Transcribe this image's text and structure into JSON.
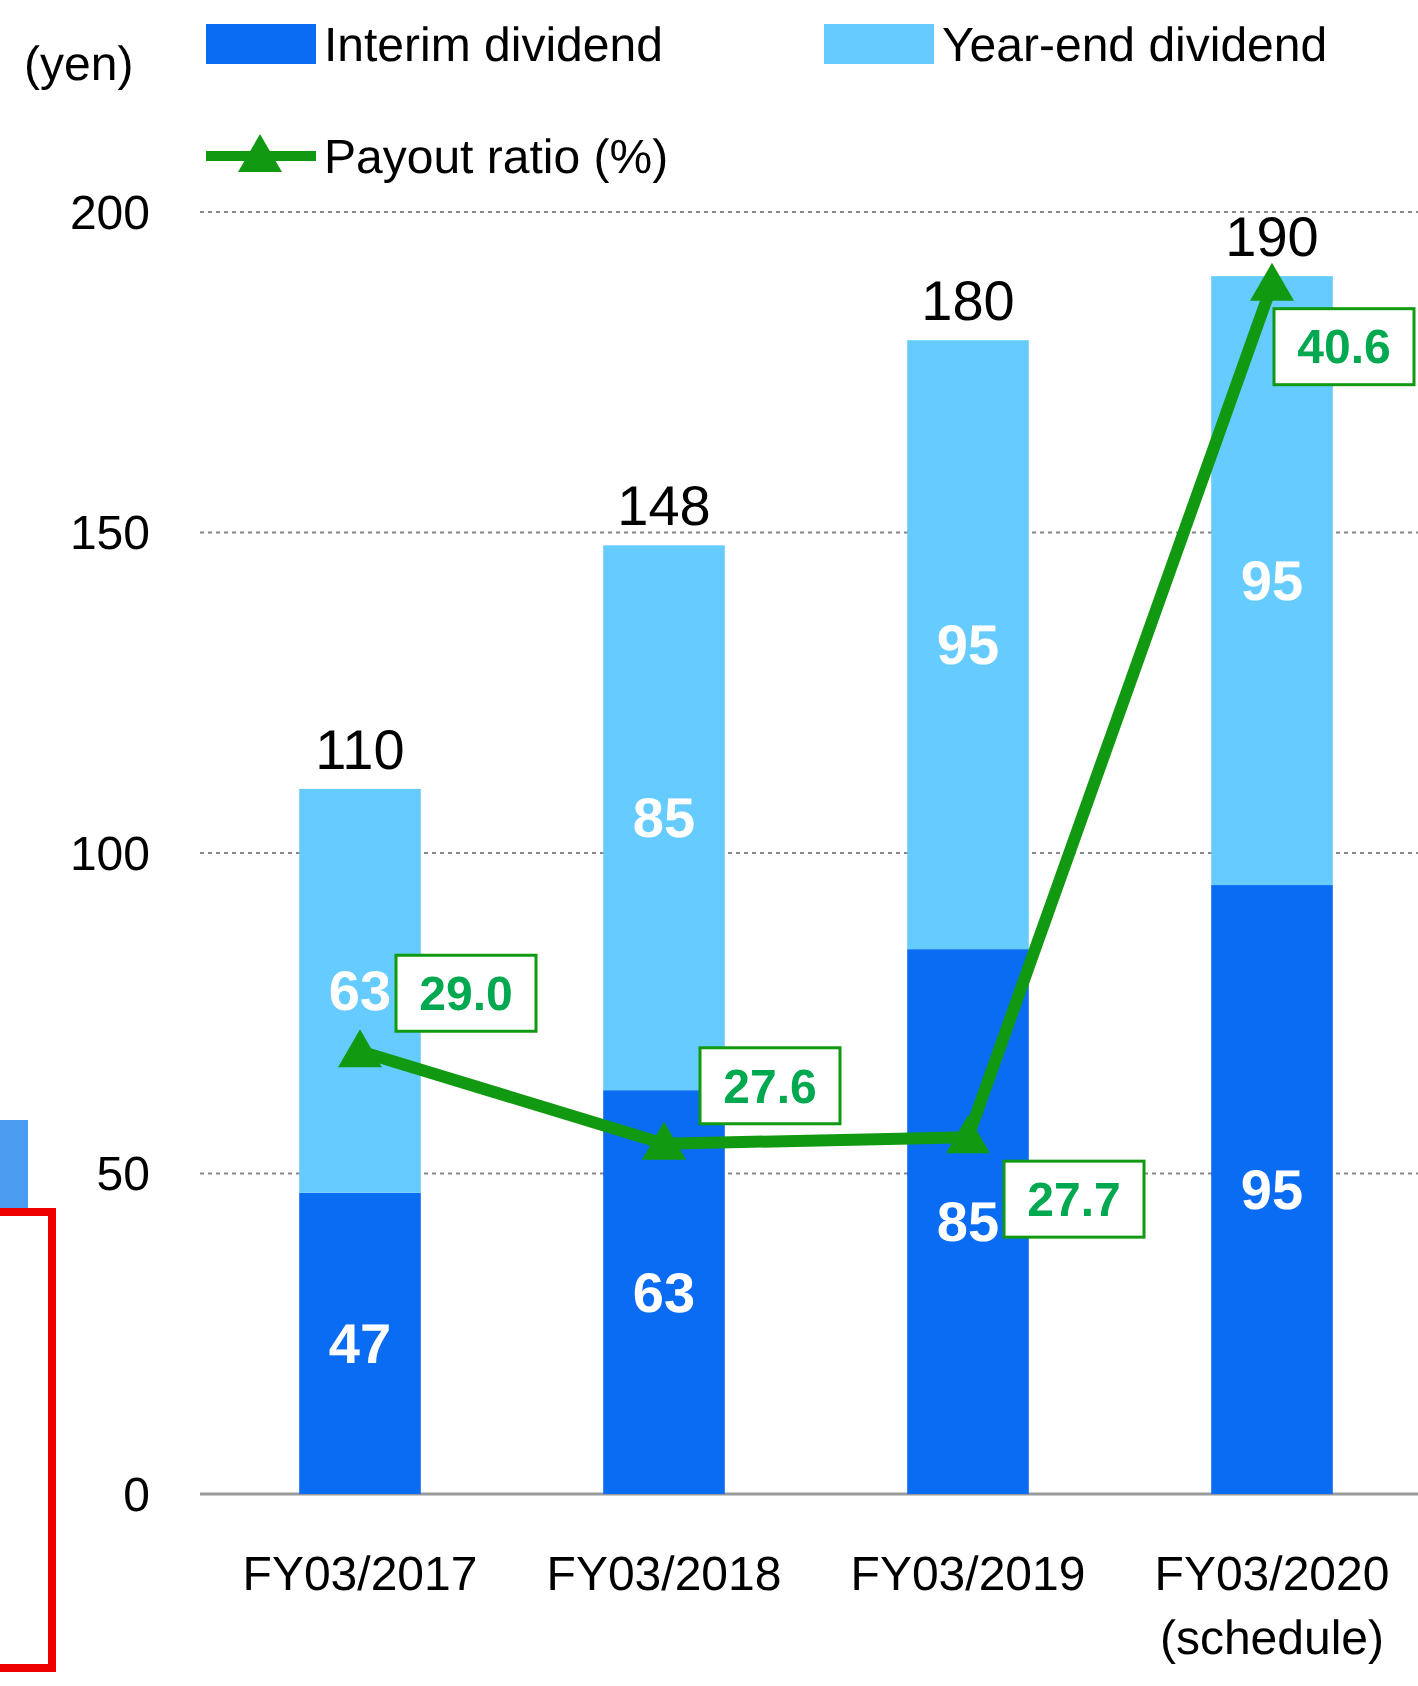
{
  "chart_data": {
    "type": "bar",
    "stacked": true,
    "ylabel": "(yen)",
    "categories": [
      "FY03/2017",
      "FY03/2018",
      "FY03/2019",
      "FY03/2020\n(schedule)"
    ],
    "series": [
      {
        "name": "Interim dividend",
        "color": "#0a6cf2",
        "values": [
          47,
          63,
          85,
          95
        ]
      },
      {
        "name": "Year-end dividend",
        "color": "#66ccff",
        "values": [
          63,
          85,
          95,
          95
        ]
      },
      {
        "name": "Payout ratio (%)",
        "type": "line",
        "axis": "y2",
        "color": "#119a11",
        "marker": "triangle",
        "values": [
          29.0,
          27.6,
          27.7,
          40.6
        ],
        "value_labels": [
          "29.0",
          "27.6",
          "27.7",
          "40.6"
        ]
      }
    ],
    "totals": [
      "110",
      "148",
      "180",
      "190"
    ],
    "data_labels": true,
    "ylim": [
      0,
      200
    ],
    "yticks": [
      0,
      50,
      100,
      150,
      200
    ],
    "y2lim": [
      22.3,
      41.7
    ],
    "grid": "y",
    "legend": "top"
  }
}
